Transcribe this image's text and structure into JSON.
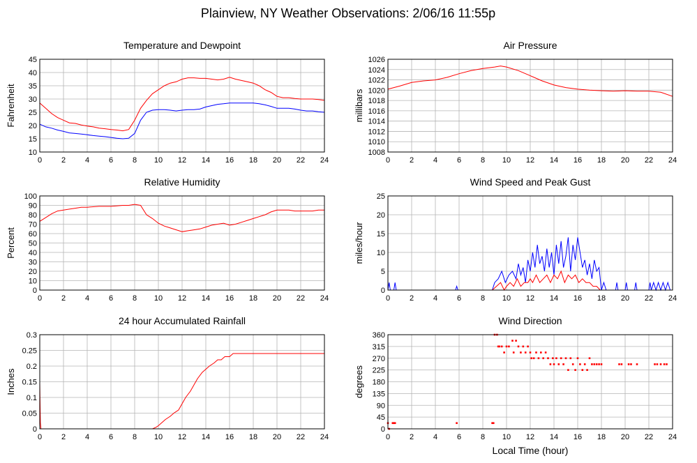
{
  "page": {
    "title": "Plainview, NY Weather Observations: 2/06/16 11:55p",
    "xlabel": "Local Time (hour)"
  },
  "chart_data": [
    {
      "id": "temp",
      "type": "line",
      "title": "Temperature and Dewpoint",
      "ylabel": "Fahrenheit",
      "xlim": [
        0,
        24
      ],
      "ylim": [
        10,
        45
      ],
      "xticks": [
        0,
        2,
        4,
        6,
        8,
        10,
        12,
        14,
        16,
        18,
        20,
        22,
        24
      ],
      "yticks": [
        10,
        15,
        20,
        25,
        30,
        35,
        40,
        45
      ],
      "grid": true,
      "series": [
        {
          "color": "#ff0000",
          "x": [
            0,
            0.5,
            1,
            1.5,
            2,
            2.5,
            3,
            3.5,
            4,
            4.5,
            5,
            5.5,
            6,
            6.5,
            7,
            7.5,
            8,
            8.5,
            9,
            9.5,
            10,
            10.5,
            11,
            11.5,
            12,
            12.5,
            13,
            13.5,
            14,
            14.5,
            15,
            15.5,
            16,
            16.5,
            17,
            17.5,
            18,
            18.5,
            19,
            19.5,
            20,
            20.5,
            21,
            21.5,
            22,
            22.5,
            23,
            23.5,
            24
          ],
          "y": [
            28.5,
            26.5,
            24.5,
            23,
            22,
            21,
            20.8,
            20.2,
            19.8,
            19.5,
            19,
            18.8,
            18.5,
            18.3,
            18,
            18.5,
            22,
            26.5,
            29.5,
            32,
            33.5,
            35,
            36,
            36.5,
            37.5,
            38,
            38,
            37.8,
            37.8,
            37.5,
            37.2,
            37.5,
            38.2,
            37.5,
            37,
            36.5,
            36,
            35,
            33.5,
            32.5,
            31,
            30.5,
            30.5,
            30.2,
            30,
            30,
            30,
            29.8,
            29.5
          ]
        },
        {
          "color": "#0000ff",
          "x": [
            0,
            0.5,
            1,
            1.5,
            2,
            2.5,
            3,
            3.5,
            4,
            4.5,
            5,
            5.5,
            6,
            6.5,
            7,
            7.5,
            8,
            8.5,
            9,
            9.5,
            10,
            10.5,
            11,
            11.5,
            12,
            12.5,
            13,
            13.5,
            14,
            14.5,
            15,
            15.5,
            16,
            16.5,
            17,
            17.5,
            18,
            18.5,
            19,
            19.5,
            20,
            20.5,
            21,
            21.5,
            22,
            22.5,
            23,
            23.5,
            24
          ],
          "y": [
            20.5,
            19.5,
            19,
            18.3,
            17.8,
            17.2,
            17,
            16.8,
            16.5,
            16.2,
            16,
            15.8,
            15.5,
            15.2,
            15,
            15.2,
            17,
            22,
            25,
            25.8,
            26,
            26,
            25.8,
            25.5,
            25.8,
            26,
            26,
            26.2,
            27,
            27.5,
            28,
            28.2,
            28.5,
            28.5,
            28.5,
            28.5,
            28.5,
            28.2,
            27.8,
            27.2,
            26.5,
            26.5,
            26.5,
            26.2,
            25.8,
            25.5,
            25.5,
            25.2,
            25
          ]
        }
      ]
    },
    {
      "id": "pres",
      "type": "line",
      "title": "Air Pressure",
      "ylabel": "millibars",
      "xlim": [
        0,
        24
      ],
      "ylim": [
        1008,
        1026
      ],
      "xticks": [
        0,
        2,
        4,
        6,
        8,
        10,
        12,
        14,
        16,
        18,
        20,
        22,
        24
      ],
      "yticks": [
        1008,
        1010,
        1012,
        1014,
        1016,
        1018,
        1020,
        1022,
        1024,
        1026
      ],
      "grid": true,
      "series": [
        {
          "color": "#ff0000",
          "x": [
            0,
            1,
            2,
            3,
            4,
            5,
            6,
            7,
            8,
            9,
            9.5,
            10,
            11,
            12,
            13,
            14,
            15,
            16,
            17,
            18,
            19,
            20,
            21,
            22,
            23,
            24
          ],
          "y": [
            1020.2,
            1020.8,
            1021.5,
            1021.8,
            1022,
            1022.5,
            1023.2,
            1023.8,
            1024.2,
            1024.5,
            1024.7,
            1024.5,
            1023.8,
            1022.8,
            1021.8,
            1021,
            1020.5,
            1020.2,
            1020,
            1019.9,
            1019.8,
            1019.9,
            1019.8,
            1019.8,
            1019.6,
            1018.8
          ]
        }
      ]
    },
    {
      "id": "rh",
      "type": "line",
      "title": "Relative Humidity",
      "ylabel": "Percent",
      "xlim": [
        0,
        24
      ],
      "ylim": [
        0,
        100
      ],
      "xticks": [
        0,
        2,
        4,
        6,
        8,
        10,
        12,
        14,
        16,
        18,
        20,
        22,
        24
      ],
      "yticks": [
        0,
        10,
        20,
        30,
        40,
        50,
        60,
        70,
        80,
        90,
        100
      ],
      "grid": true,
      "series": [
        {
          "color": "#ff0000",
          "x": [
            0,
            0.5,
            1,
            1.5,
            2,
            2.5,
            3,
            3.5,
            4,
            4.5,
            5,
            5.5,
            6,
            6.5,
            7,
            7.5,
            8,
            8.5,
            9,
            9.5,
            10,
            10.5,
            11,
            11.5,
            12,
            12.5,
            13,
            13.5,
            14,
            14.5,
            15,
            15.5,
            16,
            16.5,
            17,
            17.5,
            18,
            18.5,
            19,
            19.5,
            20,
            20.5,
            21,
            21.5,
            22,
            22.5,
            23,
            23.5,
            24
          ],
          "y": [
            73,
            77,
            81,
            84,
            85,
            86,
            87,
            88,
            88,
            88.5,
            89,
            89,
            89,
            89.5,
            90,
            90,
            91,
            90,
            80,
            76,
            71,
            68,
            66,
            64,
            62,
            63,
            64,
            65,
            67,
            69,
            70,
            71,
            69,
            70,
            72,
            74,
            76,
            78,
            80,
            83,
            85,
            85,
            85,
            84,
            84,
            84,
            84,
            85,
            85
          ]
        }
      ]
    },
    {
      "id": "wind",
      "type": "line",
      "title": "Wind Speed and Peak Gust",
      "ylabel": "miles/hour",
      "xlim": [
        0,
        24
      ],
      "ylim": [
        0,
        25
      ],
      "xticks": [
        0,
        2,
        4,
        6,
        8,
        10,
        12,
        14,
        16,
        18,
        20,
        22,
        24
      ],
      "yticks": [
        0,
        5,
        10,
        15,
        20,
        25
      ],
      "grid": true,
      "series": [
        {
          "color": "#0000ff",
          "x": [
            0,
            0.1,
            0.2,
            0.3,
            0.5,
            0.6,
            0.7,
            0.8,
            1,
            5.7,
            5.8,
            5.9,
            8.8,
            9,
            9.3,
            9.6,
            9.9,
            10.2,
            10.5,
            10.8,
            11,
            11.2,
            11.4,
            11.6,
            11.8,
            12,
            12.2,
            12.4,
            12.6,
            12.8,
            13,
            13.2,
            13.4,
            13.6,
            13.8,
            14,
            14.2,
            14.4,
            14.6,
            14.8,
            15,
            15.2,
            15.4,
            15.6,
            15.8,
            16,
            16.2,
            16.4,
            16.6,
            16.8,
            17,
            17.2,
            17.4,
            17.6,
            17.8,
            18,
            18.2,
            18.4,
            19.2,
            19.3,
            19.4,
            20,
            20.1,
            20.2,
            20.8,
            20.9,
            21,
            22,
            22.1,
            22.2,
            22.4,
            22.6,
            22.8,
            23,
            23.2,
            23.4,
            23.6,
            23.8
          ],
          "y": [
            0,
            2,
            0,
            0,
            0,
            2,
            0,
            0,
            0,
            0,
            1,
            0,
            0,
            2,
            3,
            5,
            2,
            4,
            5,
            3,
            7,
            4,
            6,
            2,
            8,
            5,
            10,
            6,
            12,
            7,
            9,
            5,
            11,
            6,
            10,
            4,
            12,
            7,
            13,
            6,
            9,
            14,
            5,
            12,
            8,
            14,
            10,
            6,
            8,
            4,
            7,
            3,
            8,
            5,
            6,
            0,
            2,
            0,
            0,
            2,
            0,
            0,
            2,
            0,
            0,
            2,
            0,
            0,
            2,
            0,
            2,
            0,
            2,
            0,
            2,
            0,
            2,
            0
          ]
        },
        {
          "color": "#ff0000",
          "x": [
            0,
            8.8,
            9.5,
            9.8,
            10,
            10.3,
            10.6,
            10.9,
            11.2,
            11.5,
            11.8,
            12,
            12.2,
            12.5,
            12.8,
            13.1,
            13.4,
            13.7,
            14,
            14.3,
            14.6,
            14.9,
            15.2,
            15.5,
            15.8,
            16.1,
            16.4,
            16.7,
            17,
            17.3,
            17.6,
            17.9,
            18.2,
            24
          ],
          "y": [
            0,
            0,
            2,
            0,
            1,
            2,
            1,
            3,
            1,
            2,
            2,
            3,
            2,
            4,
            2,
            3,
            4,
            2,
            4,
            3,
            5,
            2,
            4,
            3,
            4,
            2,
            3,
            2,
            2,
            1,
            1,
            0,
            0,
            0
          ]
        }
      ]
    },
    {
      "id": "rain",
      "type": "line",
      "title": "24 hour Accumulated Rainfall",
      "ylabel": "Inches",
      "xlim": [
        0,
        24
      ],
      "ylim": [
        0,
        0.3
      ],
      "xticks": [
        0,
        2,
        4,
        6,
        8,
        10,
        12,
        14,
        16,
        18,
        20,
        22,
        24
      ],
      "yticks": [
        0,
        0.05,
        0.1,
        0.15,
        0.2,
        0.25,
        0.3
      ],
      "grid": true,
      "series": [
        {
          "color": "#ff0000",
          "x": [
            0,
            0.02,
            0.05,
            0.1,
            9.5,
            9.8,
            10,
            10.3,
            10.6,
            11,
            11.3,
            11.7,
            12,
            12.3,
            12.7,
            13,
            13.3,
            13.7,
            14,
            14.3,
            14.7,
            15,
            15.3,
            15.6,
            16,
            16.3,
            16.5,
            24
          ],
          "y": [
            0.15,
            0.1,
            0.02,
            0,
            0,
            0.005,
            0.01,
            0.02,
            0.03,
            0.04,
            0.05,
            0.06,
            0.08,
            0.1,
            0.12,
            0.14,
            0.16,
            0.18,
            0.19,
            0.2,
            0.21,
            0.22,
            0.22,
            0.23,
            0.23,
            0.24,
            0.24,
            0.24
          ]
        }
      ]
    },
    {
      "id": "dir",
      "type": "scatter",
      "title": "Wind Direction",
      "ylabel": "degrees",
      "xlim": [
        0,
        24
      ],
      "ylim": [
        0,
        360
      ],
      "xticks": [
        0,
        2,
        4,
        6,
        8,
        10,
        12,
        14,
        16,
        18,
        20,
        22,
        24
      ],
      "yticks": [
        0,
        45,
        90,
        135,
        180,
        225,
        270,
        315,
        360
      ],
      "grid": true,
      "series": [
        {
          "color": "#ff0000",
          "x": [
            0,
            0.1,
            0.4,
            0.5,
            0.6,
            5.8,
            8.8,
            8.9,
            9.0,
            9.2,
            9.3,
            9.4,
            9.6,
            9.8,
            10,
            10.2,
            10.5,
            10.6,
            10.8,
            11,
            11.2,
            11.4,
            11.6,
            11.8,
            12,
            12.1,
            12.3,
            12.5,
            12.7,
            12.9,
            13.1,
            13.3,
            13.5,
            13.7,
            13.9,
            14,
            14.2,
            14.4,
            14.6,
            14.8,
            15,
            15.2,
            15.4,
            15.6,
            15.8,
            16,
            16.2,
            16.4,
            16.6,
            16.8,
            17,
            17.2,
            17.4,
            17.6,
            17.8,
            18,
            19.5,
            19.7,
            20.3,
            20.5,
            21,
            22.5,
            22.7,
            23,
            23.3,
            23.5
          ],
          "y": [
            22,
            0,
            22,
            22,
            22,
            22,
            22,
            22,
            360,
            360,
            315,
            315,
            315,
            292,
            315,
            315,
            337,
            292,
            337,
            315,
            292,
            315,
            292,
            315,
            292,
            270,
            270,
            292,
            270,
            292,
            270,
            292,
            270,
            247,
            270,
            247,
            270,
            247,
            270,
            247,
            270,
            225,
            270,
            247,
            225,
            270,
            247,
            225,
            247,
            225,
            270,
            247,
            247,
            247,
            247,
            247,
            247,
            247,
            247,
            247,
            247,
            247,
            247,
            247,
            247,
            247
          ]
        }
      ]
    }
  ]
}
